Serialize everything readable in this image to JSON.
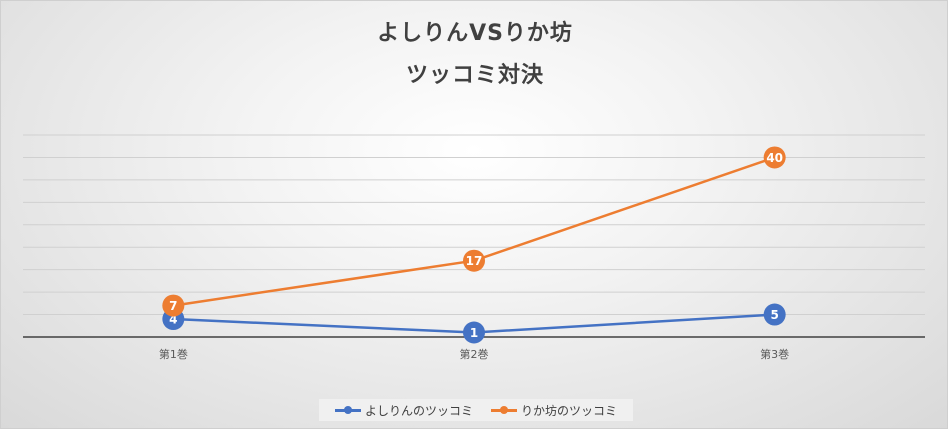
{
  "chart_data": {
    "type": "line",
    "title_lines": [
      "よしりんVSりか坊",
      "ツッコミ対決"
    ],
    "categories": [
      "第1巻",
      "第2巻",
      "第3巻"
    ],
    "series": [
      {
        "name": "よしりんのツッコミ",
        "values": [
          4,
          1,
          5
        ],
        "color": "#4472C4"
      },
      {
        "name": "りか坊のツッコミ",
        "values": [
          7,
          17,
          40
        ],
        "color": "#ED7D31"
      }
    ],
    "ylim": [
      0,
      45
    ],
    "grid": true,
    "legend_position": "bottom"
  }
}
